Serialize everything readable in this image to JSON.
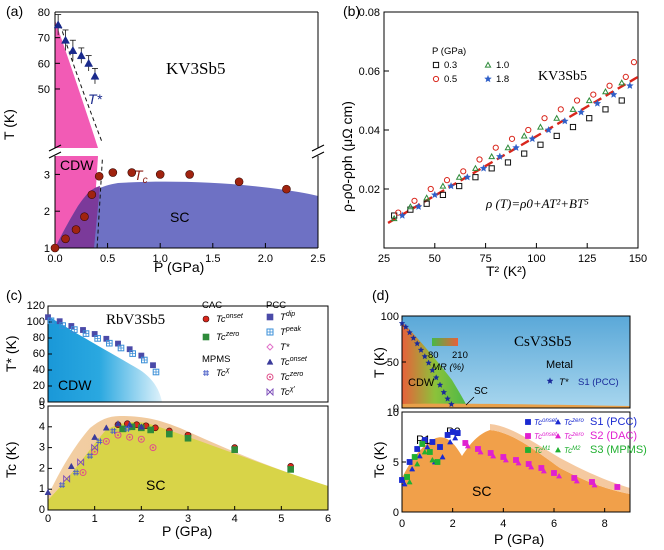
{
  "chart_data": [
    {
      "id": "a",
      "type": "scatter",
      "panel_label": "(a)",
      "compound": "KV3Sb5",
      "xlabel": "P (GPa)",
      "ylabel": "T (K)",
      "xlim": [
        0,
        2.5
      ],
      "ylim_lower": [
        1,
        3.5
      ],
      "ylim_upper": [
        27,
        80
      ],
      "x_ticks": [
        "0.0",
        "0.5",
        "1.0",
        "1.5",
        "2.0",
        "2.5"
      ],
      "y_ticks_upper": [
        "80",
        "70",
        "60",
        "50"
      ],
      "y_ticks_lower": [
        "3",
        "2",
        "1"
      ],
      "region_labels": {
        "cdw": "CDW",
        "sc": "SC",
        "tstar": "T*",
        "tc": "Tc",
        "tc_sub": "c"
      },
      "colors": {
        "cdw": "#f25bb5",
        "sc": "#6e71c4",
        "overlap": "#7b3a9a",
        "tstar": "#1a2a8c",
        "tc": "#8b1a10"
      },
      "series": [
        {
          "name": "T*",
          "x": [
            0.03,
            0.1,
            0.17,
            0.25,
            0.32,
            0.38
          ],
          "y": [
            75,
            69,
            65,
            63,
            60,
            55
          ],
          "yerr": [
            4,
            4,
            4,
            3,
            3,
            3
          ]
        },
        {
          "name": "Tc",
          "x": [
            0.0,
            0.1,
            0.2,
            0.28,
            0.35,
            0.42,
            0.55,
            0.73,
            1.0,
            1.28,
            1.75,
            2.2
          ],
          "y": [
            1.0,
            1.25,
            1.5,
            1.85,
            2.45,
            2.95,
            3.05,
            3.05,
            3.0,
            3.0,
            2.8,
            2.6
          ]
        }
      ]
    },
    {
      "id": "b",
      "type": "scatter",
      "panel_label": "(b)",
      "compound": "KV3Sb5",
      "xlabel": "T² (K²)",
      "ylabel": "ρ-ρ0-ρph (μΩ cm)",
      "equation": "ρ (T)=ρ0+AT²+BT⁵",
      "legend_title": "P (GPa)",
      "xlim": [
        25,
        150
      ],
      "ylim": [
        0,
        0.08
      ],
      "x_ticks": [
        "25",
        "50",
        "75",
        "100",
        "125",
        "150"
      ],
      "y_ticks": [
        "0.08",
        "0.06",
        "0.04",
        "0.02"
      ],
      "series": [
        {
          "name": "0.3",
          "marker": "square",
          "color": "#111111",
          "x": [
            30,
            38,
            46,
            54,
            62,
            70,
            78,
            86,
            94,
            102,
            110,
            118,
            126,
            134,
            142
          ],
          "y": [
            0.011,
            0.013,
            0.015,
            0.018,
            0.021,
            0.024,
            0.027,
            0.029,
            0.032,
            0.035,
            0.038,
            0.041,
            0.044,
            0.047,
            0.05
          ]
        },
        {
          "name": "0.5",
          "marker": "circle",
          "color": "#d9261c",
          "x": [
            32,
            40,
            48,
            56,
            64,
            72,
            80,
            88,
            96,
            104,
            112,
            120,
            128,
            136,
            144,
            148
          ],
          "y": [
            0.012,
            0.016,
            0.02,
            0.023,
            0.026,
            0.03,
            0.034,
            0.037,
            0.04,
            0.044,
            0.047,
            0.05,
            0.052,
            0.055,
            0.058,
            0.063
          ]
        },
        {
          "name": "1.0",
          "marker": "triangle",
          "color": "#2e8b3a",
          "x": [
            30,
            38,
            46,
            54,
            62,
            70,
            78,
            86,
            94,
            102,
            110,
            118,
            126,
            134,
            142
          ],
          "y": [
            0.01,
            0.014,
            0.017,
            0.021,
            0.024,
            0.027,
            0.031,
            0.034,
            0.038,
            0.041,
            0.044,
            0.047,
            0.05,
            0.053,
            0.056
          ]
        },
        {
          "name": "1.8",
          "marker": "star",
          "color": "#2f5fc8",
          "x": [
            34,
            42,
            50,
            58,
            66,
            74,
            82,
            90,
            98,
            106,
            114,
            122,
            130,
            138,
            146
          ],
          "y": [
            0.011,
            0.014,
            0.018,
            0.021,
            0.024,
            0.027,
            0.031,
            0.034,
            0.037,
            0.04,
            0.043,
            0.046,
            0.049,
            0.052,
            0.055
          ]
        },
        {
          "name": "fit",
          "marker": "dashed-line",
          "color": "#d9261c",
          "x": [
            27,
            150
          ],
          "y": [
            0.0085,
            0.058
          ]
        }
      ]
    },
    {
      "id": "c",
      "type": "scatter",
      "panel_label": "(c)",
      "compound": "RbV3Sb5",
      "xlabel": "P (GPa)",
      "ylabel_upper": "T* (K)",
      "ylabel_lower": "Tc (K)",
      "xlim": [
        0,
        6
      ],
      "ylim_upper": [
        0,
        120
      ],
      "ylim_lower": [
        0,
        5
      ],
      "x_ticks": [
        "0",
        "1",
        "2",
        "3",
        "4",
        "5",
        "6"
      ],
      "y_ticks_upper": [
        "120",
        "100",
        "80",
        "60",
        "40",
        "20",
        "0"
      ],
      "y_ticks_lower": [
        "5",
        "4",
        "3",
        "2",
        "1",
        "0"
      ],
      "region_labels": {
        "cdw": "CDW",
        "sc": "SC"
      },
      "legend": {
        "cac_title": "CAC",
        "pcc_title": "PCC",
        "mpms_title": "MPMS",
        "items": [
          {
            "group": "CAC",
            "label": "Tc",
            "sup": "onset",
            "marker": "circle-filled",
            "color": "#d9261c"
          },
          {
            "group": "CAC",
            "label": "Tc",
            "sup": "zero",
            "marker": "square-filled",
            "color": "#2e8b3a"
          },
          {
            "group": "MPMS",
            "label": "Tc",
            "sup": "χ",
            "marker": "hash",
            "color": "#4a5fc8"
          },
          {
            "group": "PCC",
            "label": "T",
            "sup": "dip",
            "marker": "square-filled",
            "color": "#4a4aa8"
          },
          {
            "group": "PCC",
            "label": "T",
            "sup": "peak",
            "marker": "square-open-cross",
            "color": "#3a8fd8"
          },
          {
            "group": "PCC",
            "label": "T*",
            "sup": "",
            "marker": "diamond-open",
            "color": "#e070c8"
          },
          {
            "group": "PCC",
            "label": "Tc",
            "sup": "onset",
            "marker": "triangle-filled",
            "color": "#3a3a9a"
          },
          {
            "group": "PCC",
            "label": "Tc",
            "sup": "zero",
            "marker": "circle-dot",
            "color": "#e0508a"
          },
          {
            "group": "PCC",
            "label": "Tc",
            "sup": "χ'",
            "marker": "bowtie",
            "color": "#7a4ab8"
          }
        ]
      },
      "series": [
        {
          "name": "T* dip",
          "x": [
            0.0,
            0.25,
            0.5,
            0.75,
            1.0,
            1.25,
            1.5,
            1.75,
            2.0,
            2.25
          ],
          "y": [
            106,
            101,
            95,
            90,
            85,
            79,
            73,
            66,
            58,
            46
          ]
        },
        {
          "name": "T* peak",
          "x": [
            0.0,
            0.25,
            0.5,
            0.75,
            1.0,
            1.25,
            1.5,
            1.75,
            2.0,
            2.25
          ],
          "y": [
            104,
            98,
            93,
            88,
            82,
            76,
            70,
            63,
            55,
            40
          ]
        },
        {
          "name": "Tc onset CAC",
          "x": [
            1.5,
            1.7,
            1.9,
            2.1,
            2.3,
            2.6,
            3.0,
            4.0,
            5.2
          ],
          "y": [
            4.1,
            4.15,
            4.1,
            4.05,
            3.95,
            3.8,
            3.6,
            3.0,
            2.1
          ]
        },
        {
          "name": "Tc zero CAC",
          "x": [
            1.6,
            1.8,
            2.0,
            2.2,
            2.6,
            3.0,
            4.0,
            5.2
          ],
          "y": [
            3.9,
            4.0,
            3.95,
            3.85,
            3.65,
            3.45,
            2.9,
            1.95
          ]
        },
        {
          "name": "Tc onset PCC",
          "x": [
            0.0,
            0.5,
            1.0,
            1.25,
            1.5,
            1.75,
            2.0
          ],
          "y": [
            0.85,
            2.1,
            3.5,
            3.95,
            4.15,
            4.1,
            4.0
          ]
        },
        {
          "name": "Tc zero PCC",
          "x": [
            0.75,
            1.0,
            1.25,
            1.5,
            1.75,
            2.0,
            2.25
          ],
          "y": [
            1.8,
            2.8,
            3.3,
            3.6,
            3.5,
            3.4,
            3.0
          ]
        },
        {
          "name": "Tc chi MPMS",
          "x": [
            0.3,
            0.6,
            0.9,
            1.1,
            1.4,
            1.7
          ],
          "y": [
            1.2,
            1.8,
            2.6,
            3.3,
            3.8,
            3.9
          ]
        },
        {
          "name": "Tc chi' PCC",
          "x": [
            0.4,
            0.7,
            1.0
          ],
          "y": [
            1.5,
            2.3,
            3.0
          ]
        }
      ]
    },
    {
      "id": "d",
      "type": "scatter",
      "panel_label": "(d)",
      "compound": "CsV3Sb5",
      "xlabel": "P (GPa)",
      "ylabel_upper": "T (K)",
      "ylabel_lower": "Tc (K)",
      "xlim": [
        0,
        9
      ],
      "ylim_upper": [
        0,
        100
      ],
      "ylim_lower": [
        0,
        10
      ],
      "x_ticks": [
        "0",
        "2",
        "4",
        "6",
        "8"
      ],
      "y_ticks_upper": [
        "100",
        "50",
        "0"
      ],
      "y_ticks_lower": [
        "10",
        "5",
        "0"
      ],
      "region_labels": {
        "cdw": "CDW",
        "sc_upper": "SC",
        "metal": "Metal",
        "sc": "SC",
        "p1": "P1",
        "p2": "P2"
      },
      "mr_scale": {
        "title": "MR (%)",
        "min": "80",
        "max": "210"
      },
      "legend_upper": [
        {
          "label": "T*",
          "source": "S1 (PCC)",
          "marker": "star",
          "color": "#1a2a9a"
        }
      ],
      "legend_lower": [
        {
          "label": "Tc",
          "sup": "onset",
          "marker": "square-filled",
          "color": "#1a2ad0",
          "group": "S1"
        },
        {
          "label": "Tc",
          "sup": "zero",
          "marker": "triangle-filled",
          "color": "#1a2ad0",
          "group": "S1",
          "source": "S1 (PCC)"
        },
        {
          "label": "Tc",
          "sup": "onset",
          "marker": "square-filled",
          "color": "#e020d0",
          "group": "S2"
        },
        {
          "label": "Tc",
          "sup": "zero",
          "marker": "triangle-filled",
          "color": "#e020d0",
          "group": "S2",
          "source": "S2 (DAC)"
        },
        {
          "label": "Tc",
          "sup": "M1",
          "marker": "square-filled",
          "color": "#20b030",
          "group": "S3"
        },
        {
          "label": "Tc",
          "sup": "M2",
          "marker": "triangle-filled",
          "color": "#20b030",
          "group": "S3",
          "source": "S3 (MPMS)"
        }
      ],
      "series": [
        {
          "name": "T*",
          "x": [
            0.0,
            0.15,
            0.3,
            0.45,
            0.6,
            0.75,
            0.9,
            1.05,
            1.2,
            1.35,
            1.5,
            1.65,
            1.8,
            1.95
          ],
          "y": [
            92,
            88,
            82,
            76,
            70,
            63,
            56,
            49,
            41,
            33,
            25,
            17,
            10,
            4
          ]
        },
        {
          "name": "Tc S1 onset",
          "x": [
            0.0,
            0.3,
            0.6,
            0.9,
            1.2,
            1.5,
            1.8,
            2.0,
            2.2
          ],
          "y": [
            3.2,
            5.0,
            6.3,
            7.2,
            7.0,
            6.5,
            7.7,
            8.0,
            7.9
          ]
        },
        {
          "name": "Tc S1 zero",
          "x": [
            0.1,
            0.4,
            0.7,
            1.0,
            1.3,
            1.6,
            1.9,
            2.1
          ],
          "y": [
            2.8,
            4.3,
            5.6,
            6.5,
            5.0,
            5.5,
            7.0,
            7.4
          ]
        },
        {
          "name": "Tc S2 onset",
          "x": [
            2.5,
            3.0,
            3.5,
            4.0,
            4.5,
            5.0,
            5.5,
            6.0,
            6.8,
            7.5,
            8.5
          ],
          "y": [
            6.9,
            6.3,
            5.9,
            5.5,
            5.2,
            4.8,
            4.4,
            3.9,
            3.4,
            3.0,
            2.5
          ]
        },
        {
          "name": "Tc S2 zero",
          "x": [
            2.6,
            3.1,
            3.6,
            4.1,
            4.6,
            5.1,
            5.6,
            6.2,
            6.9,
            7.6
          ],
          "y": [
            6.6,
            6.0,
            5.6,
            5.2,
            4.9,
            4.5,
            4.1,
            3.6,
            3.1,
            2.7
          ]
        },
        {
          "name": "Tc S3 M1",
          "x": [
            0.2,
            0.5,
            0.8,
            1.1,
            1.4
          ],
          "y": [
            3.5,
            5.5,
            6.8,
            6.0,
            5.0
          ]
        },
        {
          "name": "Tc S3 M2",
          "x": [
            0.3,
            0.6,
            0.9,
            1.2
          ],
          "y": [
            3.0,
            4.8,
            6.0,
            5.2
          ]
        }
      ]
    }
  ]
}
